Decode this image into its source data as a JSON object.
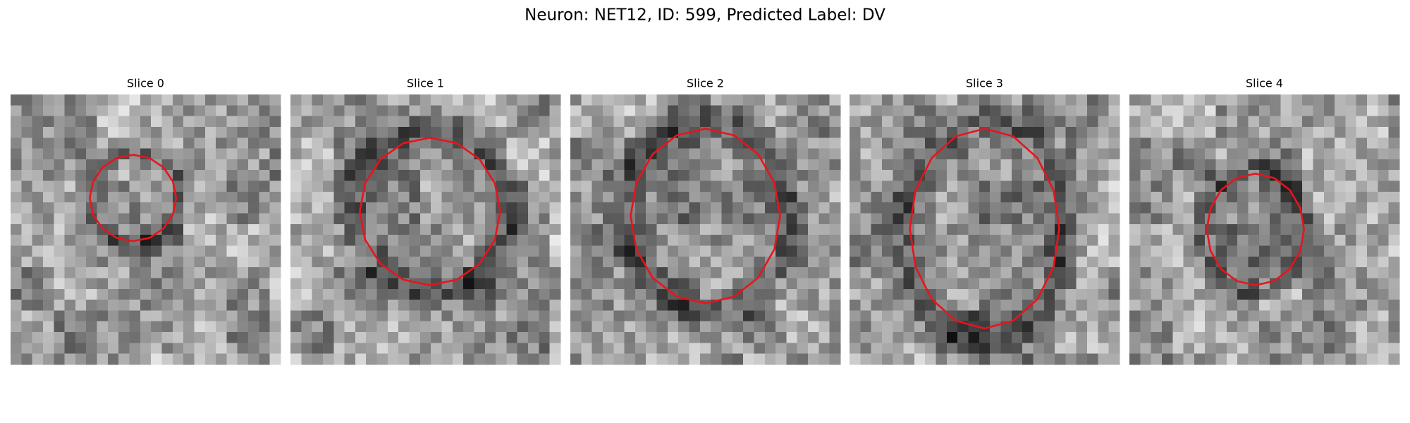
{
  "header": {
    "title": "Neuron: NET12, ID: 599, Predicted Label: DV"
  },
  "panels": [
    {
      "title": "Slice 0"
    },
    {
      "title": "Slice 1"
    },
    {
      "title": "Slice 2"
    },
    {
      "title": "Slice 3"
    },
    {
      "title": "Slice 4"
    }
  ]
}
